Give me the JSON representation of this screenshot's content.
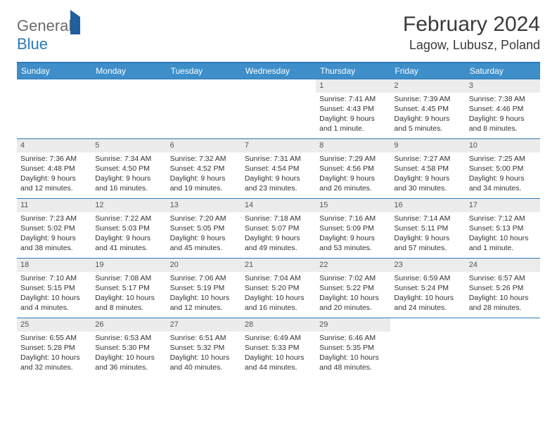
{
  "logo": {
    "general": "General",
    "blue": "Blue"
  },
  "title": "February 2024",
  "location": "Lagow, Lubusz, Poland",
  "colors": {
    "header_bg": "#3d8ec9",
    "border": "#2a7ab8",
    "daynum_bg": "#ececec",
    "text": "#333333"
  },
  "dayNames": [
    "Sunday",
    "Monday",
    "Tuesday",
    "Wednesday",
    "Thursday",
    "Friday",
    "Saturday"
  ],
  "weeks": [
    [
      null,
      null,
      null,
      null,
      {
        "n": "1",
        "sr": "Sunrise: 7:41 AM",
        "ss": "Sunset: 4:43 PM",
        "d1": "Daylight: 9 hours",
        "d2": "and 1 minute."
      },
      {
        "n": "2",
        "sr": "Sunrise: 7:39 AM",
        "ss": "Sunset: 4:45 PM",
        "d1": "Daylight: 9 hours",
        "d2": "and 5 minutes."
      },
      {
        "n": "3",
        "sr": "Sunrise: 7:38 AM",
        "ss": "Sunset: 4:46 PM",
        "d1": "Daylight: 9 hours",
        "d2": "and 8 minutes."
      }
    ],
    [
      {
        "n": "4",
        "sr": "Sunrise: 7:36 AM",
        "ss": "Sunset: 4:48 PM",
        "d1": "Daylight: 9 hours",
        "d2": "and 12 minutes."
      },
      {
        "n": "5",
        "sr": "Sunrise: 7:34 AM",
        "ss": "Sunset: 4:50 PM",
        "d1": "Daylight: 9 hours",
        "d2": "and 16 minutes."
      },
      {
        "n": "6",
        "sr": "Sunrise: 7:32 AM",
        "ss": "Sunset: 4:52 PM",
        "d1": "Daylight: 9 hours",
        "d2": "and 19 minutes."
      },
      {
        "n": "7",
        "sr": "Sunrise: 7:31 AM",
        "ss": "Sunset: 4:54 PM",
        "d1": "Daylight: 9 hours",
        "d2": "and 23 minutes."
      },
      {
        "n": "8",
        "sr": "Sunrise: 7:29 AM",
        "ss": "Sunset: 4:56 PM",
        "d1": "Daylight: 9 hours",
        "d2": "and 26 minutes."
      },
      {
        "n": "9",
        "sr": "Sunrise: 7:27 AM",
        "ss": "Sunset: 4:58 PM",
        "d1": "Daylight: 9 hours",
        "d2": "and 30 minutes."
      },
      {
        "n": "10",
        "sr": "Sunrise: 7:25 AM",
        "ss": "Sunset: 5:00 PM",
        "d1": "Daylight: 9 hours",
        "d2": "and 34 minutes."
      }
    ],
    [
      {
        "n": "11",
        "sr": "Sunrise: 7:23 AM",
        "ss": "Sunset: 5:02 PM",
        "d1": "Daylight: 9 hours",
        "d2": "and 38 minutes."
      },
      {
        "n": "12",
        "sr": "Sunrise: 7:22 AM",
        "ss": "Sunset: 5:03 PM",
        "d1": "Daylight: 9 hours",
        "d2": "and 41 minutes."
      },
      {
        "n": "13",
        "sr": "Sunrise: 7:20 AM",
        "ss": "Sunset: 5:05 PM",
        "d1": "Daylight: 9 hours",
        "d2": "and 45 minutes."
      },
      {
        "n": "14",
        "sr": "Sunrise: 7:18 AM",
        "ss": "Sunset: 5:07 PM",
        "d1": "Daylight: 9 hours",
        "d2": "and 49 minutes."
      },
      {
        "n": "15",
        "sr": "Sunrise: 7:16 AM",
        "ss": "Sunset: 5:09 PM",
        "d1": "Daylight: 9 hours",
        "d2": "and 53 minutes."
      },
      {
        "n": "16",
        "sr": "Sunrise: 7:14 AM",
        "ss": "Sunset: 5:11 PM",
        "d1": "Daylight: 9 hours",
        "d2": "and 57 minutes."
      },
      {
        "n": "17",
        "sr": "Sunrise: 7:12 AM",
        "ss": "Sunset: 5:13 PM",
        "d1": "Daylight: 10 hours",
        "d2": "and 1 minute."
      }
    ],
    [
      {
        "n": "18",
        "sr": "Sunrise: 7:10 AM",
        "ss": "Sunset: 5:15 PM",
        "d1": "Daylight: 10 hours",
        "d2": "and 4 minutes."
      },
      {
        "n": "19",
        "sr": "Sunrise: 7:08 AM",
        "ss": "Sunset: 5:17 PM",
        "d1": "Daylight: 10 hours",
        "d2": "and 8 minutes."
      },
      {
        "n": "20",
        "sr": "Sunrise: 7:06 AM",
        "ss": "Sunset: 5:19 PM",
        "d1": "Daylight: 10 hours",
        "d2": "and 12 minutes."
      },
      {
        "n": "21",
        "sr": "Sunrise: 7:04 AM",
        "ss": "Sunset: 5:20 PM",
        "d1": "Daylight: 10 hours",
        "d2": "and 16 minutes."
      },
      {
        "n": "22",
        "sr": "Sunrise: 7:02 AM",
        "ss": "Sunset: 5:22 PM",
        "d1": "Daylight: 10 hours",
        "d2": "and 20 minutes."
      },
      {
        "n": "23",
        "sr": "Sunrise: 6:59 AM",
        "ss": "Sunset: 5:24 PM",
        "d1": "Daylight: 10 hours",
        "d2": "and 24 minutes."
      },
      {
        "n": "24",
        "sr": "Sunrise: 6:57 AM",
        "ss": "Sunset: 5:26 PM",
        "d1": "Daylight: 10 hours",
        "d2": "and 28 minutes."
      }
    ],
    [
      {
        "n": "25",
        "sr": "Sunrise: 6:55 AM",
        "ss": "Sunset: 5:28 PM",
        "d1": "Daylight: 10 hours",
        "d2": "and 32 minutes."
      },
      {
        "n": "26",
        "sr": "Sunrise: 6:53 AM",
        "ss": "Sunset: 5:30 PM",
        "d1": "Daylight: 10 hours",
        "d2": "and 36 minutes."
      },
      {
        "n": "27",
        "sr": "Sunrise: 6:51 AM",
        "ss": "Sunset: 5:32 PM",
        "d1": "Daylight: 10 hours",
        "d2": "and 40 minutes."
      },
      {
        "n": "28",
        "sr": "Sunrise: 6:49 AM",
        "ss": "Sunset: 5:33 PM",
        "d1": "Daylight: 10 hours",
        "d2": "and 44 minutes."
      },
      {
        "n": "29",
        "sr": "Sunrise: 6:46 AM",
        "ss": "Sunset: 5:35 PM",
        "d1": "Daylight: 10 hours",
        "d2": "and 48 minutes."
      },
      null,
      null
    ]
  ]
}
